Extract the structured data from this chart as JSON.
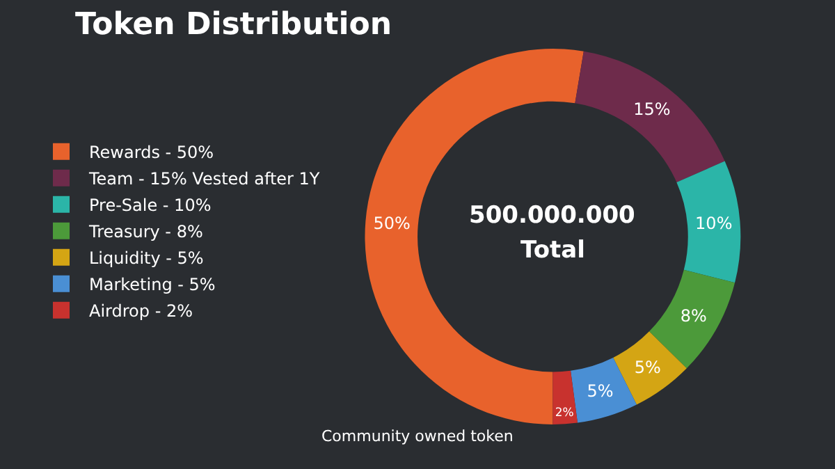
{
  "chart_data": {
    "type": "donut",
    "title": "Token Distribution",
    "categories": [
      "Rewards - 50%",
      "Team - 15% Vested after 1Y",
      "Pre-Sale - 10%",
      "Treasury - 8%",
      "Liquidity - 5%",
      "Marketing - 5%",
      "Airdrop - 2%"
    ],
    "values": [
      50,
      15,
      10,
      8,
      5,
      5,
      2
    ],
    "value_labels": [
      "50%",
      "15%",
      "10%",
      "8%",
      "5%",
      "5%",
      "2%"
    ],
    "colors": [
      "#e8622c",
      "#6e2b4b",
      "#2bb5a8",
      "#4c9a3a",
      "#d4a514",
      "#4a8fd4",
      "#c8322e"
    ],
    "annotations": [
      "500.000.000",
      "Total",
      "Community owned token"
    ],
    "legend": "left"
  }
}
